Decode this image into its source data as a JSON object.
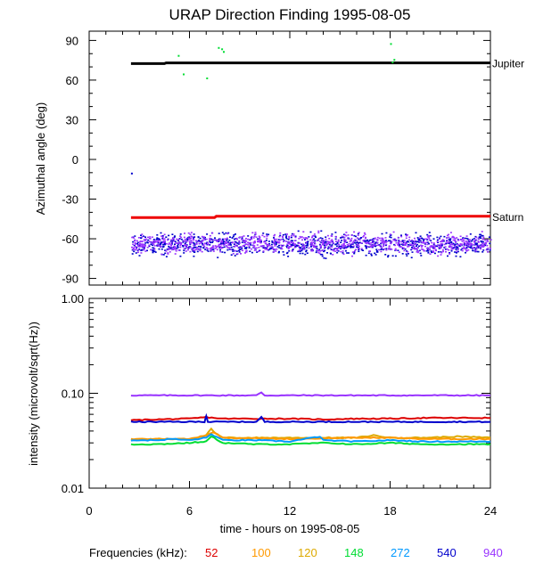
{
  "title": "URAP Direction Finding  1995-08-05",
  "colors": {
    "axes": "#000000",
    "f52": "#dd0000",
    "f100": "#ff9900",
    "f120": "#ddaa00",
    "f148": "#00dd33",
    "f272": "#0099ff",
    "f540": "#0000cc",
    "f940": "#9933ff",
    "jupiter": "#000000",
    "saturn": "#ee0000"
  },
  "legend": {
    "label": "Frequencies (kHz):",
    "items": [
      {
        "name": "52",
        "color": "#dd0000"
      },
      {
        "name": "100",
        "color": "#ff9900"
      },
      {
        "name": "120",
        "color": "#ddaa00"
      },
      {
        "name": "148",
        "color": "#00dd33"
      },
      {
        "name": "272",
        "color": "#0099ff"
      },
      {
        "name": "540",
        "color": "#0000cc"
      },
      {
        "name": "940",
        "color": "#9933ff"
      }
    ]
  },
  "chart_data": [
    {
      "type": "scatter",
      "ylabel": "Azimuthal angle (deg)",
      "xlim": [
        0,
        24
      ],
      "ylim": [
        -95,
        97
      ],
      "yticks": [
        -90,
        -60,
        -30,
        0,
        30,
        60,
        90
      ],
      "annotations": [
        {
          "text": "Jupiter",
          "x": 24,
          "y": 73
        },
        {
          "text": "Saturn",
          "x": 24,
          "y": -43
        }
      ],
      "series": [
        {
          "name": "Jupiter",
          "kind": "line",
          "color": "#000000",
          "x": [
            2.5,
            4.5,
            4.6,
            24
          ],
          "y": [
            72.5,
            72.5,
            73,
            73
          ]
        },
        {
          "name": "Saturn",
          "kind": "line",
          "color": "#ee0000",
          "x": [
            2.5,
            7.5,
            7.6,
            24
          ],
          "y": [
            -44,
            -44,
            -43,
            -43
          ]
        },
        {
          "name": "540",
          "kind": "scatter-band",
          "color": "#0000cc",
          "x_range": [
            2.5,
            24
          ],
          "center": -64,
          "spread": 12
        },
        {
          "name": "940",
          "kind": "scatter-band",
          "color": "#9933ff",
          "x_range": [
            2.5,
            24
          ],
          "center": -63,
          "spread": 11
        },
        {
          "name": "148",
          "kind": "scatter",
          "color": "#00dd33",
          "x": [
            5.3,
            5.6,
            7.0,
            7.9,
            8.0,
            18.0,
            18.2,
            18.1,
            7.7
          ],
          "y": [
            79,
            65,
            62,
            84,
            82,
            88,
            76,
            74,
            85
          ]
        },
        {
          "name": "540",
          "kind": "scatter",
          "color": "#0000cc",
          "x": [
            2.5
          ],
          "y": [
            -10
          ]
        }
      ]
    },
    {
      "type": "line",
      "ylabel": "intensity (microvolt/sqrt(Hz))",
      "xlabel": "time - hours on 1995-08-05",
      "yscale": "log",
      "xlim": [
        0,
        24
      ],
      "ylim": [
        0.01,
        1.0
      ],
      "xticks": [
        0,
        6,
        12,
        18,
        24
      ],
      "ytick_labels": [
        "1.00",
        "0.10",
        "0.01"
      ],
      "series": [
        {
          "name": "940",
          "color": "#9933ff",
          "x": [
            2.5,
            6,
            10,
            10.3,
            10.5,
            14,
            18,
            24
          ],
          "y": [
            0.095,
            0.095,
            0.095,
            0.102,
            0.095,
            0.095,
            0.095,
            0.095
          ]
        },
        {
          "name": "52",
          "color": "#dd0000",
          "x": [
            2.5,
            4,
            6,
            7,
            8,
            10,
            12,
            14,
            16,
            18,
            20,
            22,
            24
          ],
          "y": [
            0.052,
            0.053,
            0.054,
            0.056,
            0.054,
            0.054,
            0.054,
            0.053,
            0.054,
            0.054,
            0.055,
            0.055,
            0.055
          ]
        },
        {
          "name": "540",
          "color": "#0000cc",
          "x": [
            2.5,
            6,
            6.9,
            7.0,
            7.1,
            10,
            10.3,
            10.5,
            14,
            18,
            24
          ],
          "y": [
            0.05,
            0.05,
            0.05,
            0.058,
            0.05,
            0.05,
            0.056,
            0.05,
            0.05,
            0.05,
            0.05
          ]
        },
        {
          "name": "120",
          "color": "#ddaa00",
          "x": [
            2.5,
            4,
            6,
            7,
            7.3,
            7.6,
            8,
            9,
            12,
            14,
            16,
            17,
            18,
            20,
            22,
            24
          ],
          "y": [
            0.032,
            0.033,
            0.033,
            0.036,
            0.042,
            0.037,
            0.034,
            0.034,
            0.034,
            0.034,
            0.034,
            0.036,
            0.034,
            0.034,
            0.035,
            0.034
          ]
        },
        {
          "name": "100",
          "color": "#ff9900",
          "x": [
            2.5,
            6,
            7,
            7.4,
            8,
            12,
            16,
            18,
            20,
            24
          ],
          "y": [
            0.033,
            0.033,
            0.036,
            0.039,
            0.034,
            0.033,
            0.034,
            0.034,
            0.033,
            0.033
          ]
        },
        {
          "name": "272",
          "color": "#0099ff",
          "x": [
            2.5,
            4,
            5,
            6,
            7,
            7.3,
            8,
            10,
            12,
            13.8,
            14,
            16,
            18,
            20,
            24
          ],
          "y": [
            0.032,
            0.032,
            0.033,
            0.032,
            0.034,
            0.037,
            0.032,
            0.032,
            0.031,
            0.035,
            0.032,
            0.031,
            0.032,
            0.031,
            0.031
          ]
        },
        {
          "name": "148",
          "color": "#00dd33",
          "x": [
            2.5,
            4,
            6,
            7,
            7.3,
            8,
            10,
            12,
            14,
            16,
            18,
            20,
            22,
            24
          ],
          "y": [
            0.029,
            0.029,
            0.03,
            0.031,
            0.035,
            0.03,
            0.029,
            0.029,
            0.03,
            0.029,
            0.03,
            0.029,
            0.029,
            0.029
          ]
        }
      ]
    }
  ]
}
